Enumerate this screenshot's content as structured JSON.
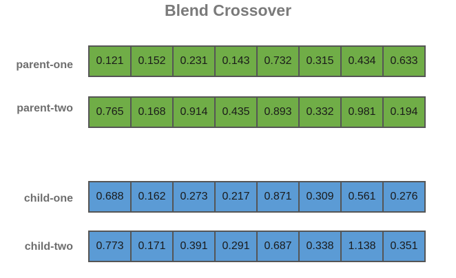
{
  "title": "Blend Crossover",
  "colors": {
    "parent_fill": "#70ad47",
    "child_fill": "#5b9bd5",
    "border": "#555555",
    "label_text": "#6e6e6e"
  },
  "rows": [
    {
      "label": "parent-one",
      "genes": [
        "0.121",
        "0.152",
        "0.231",
        "0.143",
        "0.732",
        "0.315",
        "0.434",
        "0.633"
      ]
    },
    {
      "label": "parent-two",
      "genes": [
        "0.765",
        "0.168",
        "0.914",
        "0.435",
        "0.893",
        "0.332",
        "0.981",
        "0.194"
      ]
    },
    {
      "label": "child-one",
      "genes": [
        "0.688",
        "0.162",
        "0.273",
        "0.217",
        "0.871",
        "0.309",
        "0.561",
        "0.276"
      ]
    },
    {
      "label": "child-two",
      "genes": [
        "0.773",
        "0.171",
        "0.391",
        "0.291",
        "0.687",
        "0.338",
        "1.138",
        "0.351"
      ]
    }
  ]
}
